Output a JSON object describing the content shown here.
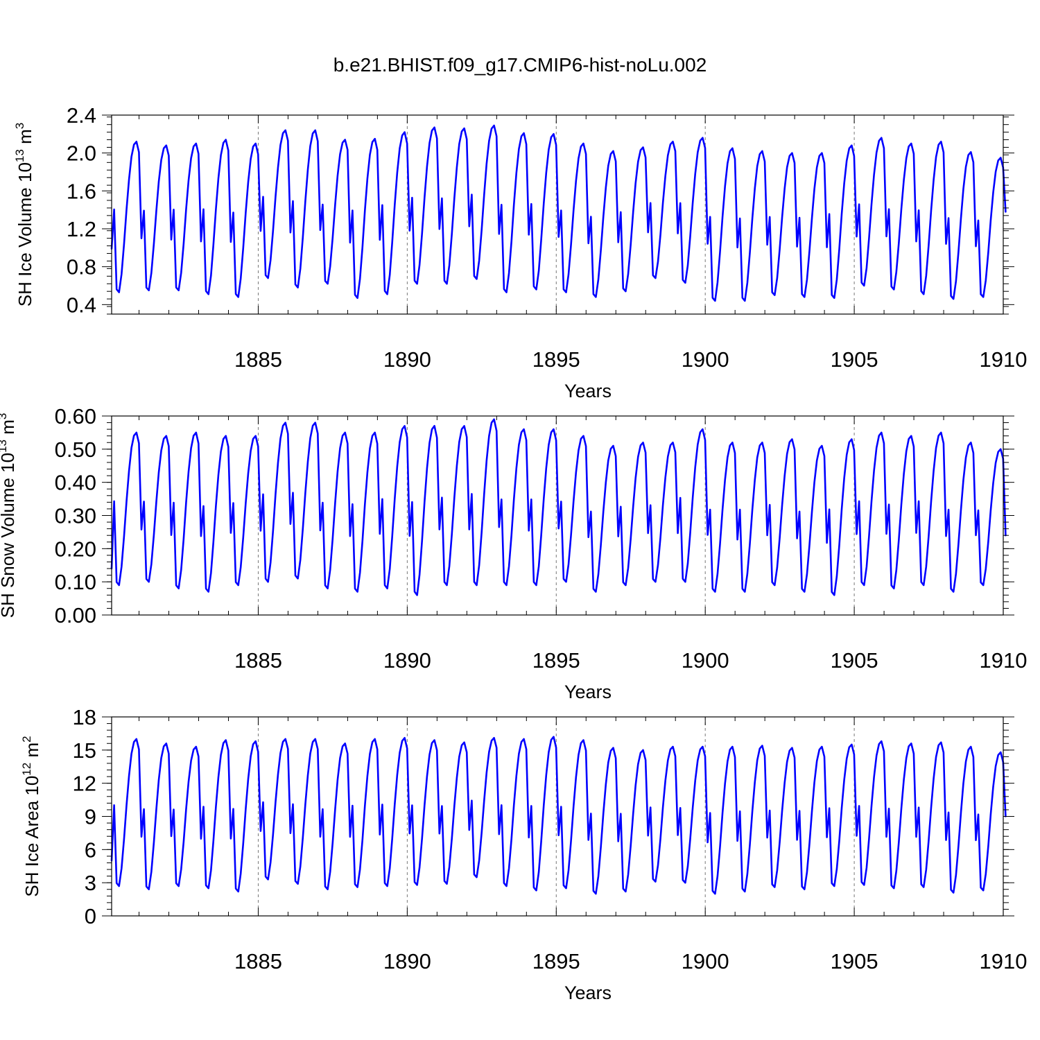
{
  "figure": {
    "title": "b.e21.BHIST.f09_g17.CMIP6-hist-noLu.002"
  },
  "colors": {
    "series": "#0000ff",
    "axis": "#000000",
    "grid": "#777777"
  },
  "chart_data": [
    {
      "type": "line",
      "ylabel": "SH Ice Volume 10",
      "ylabel_exp": "13",
      "ylabel_unit": " m",
      "ylabel_unit_exp": "3",
      "xlabel": "Years",
      "xlim": [
        1880.08,
        1910.0
      ],
      "ylim": [
        0.3,
        2.4
      ],
      "x_ticks": [
        1885,
        1890,
        1895,
        1900,
        1905,
        1910
      ],
      "x_tick_labels": [
        "1885",
        "1890",
        "1895",
        "1900",
        "1905",
        "1910"
      ],
      "y_ticks": [
        0.4,
        0.8,
        1.2,
        1.6,
        2.0,
        2.4
      ],
      "y_tick_labels": [
        "0.4",
        "0.8",
        "1.2",
        "1.6",
        "2.0",
        "2.4"
      ],
      "grid": "dashed vertical at 5-year ticks",
      "series": [
        {
          "start_year": 1880.08,
          "step": 0.0833,
          "annual_peaks": [
            2.12,
            2.08,
            2.1,
            2.14,
            2.1,
            2.24,
            2.24,
            2.14,
            2.15,
            2.22,
            2.27,
            2.26,
            2.29,
            2.21,
            2.2,
            2.1,
            2.02,
            2.06,
            2.12,
            2.16,
            2.05,
            2.02,
            2.0,
            2.0,
            2.08,
            2.16,
            2.1,
            2.12,
            2.01,
            1.95
          ],
          "annual_minima": [
            0.53,
            0.55,
            0.55,
            0.51,
            0.48,
            0.68,
            0.58,
            0.62,
            0.47,
            0.51,
            0.62,
            0.62,
            0.67,
            0.53,
            0.56,
            0.53,
            0.48,
            0.54,
            0.68,
            0.63,
            0.44,
            0.44,
            0.5,
            0.48,
            0.47,
            0.6,
            0.56,
            0.51,
            0.46,
            0.48
          ],
          "first_value": 0.99,
          "last_value": 1.38
        }
      ]
    },
    {
      "type": "line",
      "ylabel": "SH Snow Volume 10",
      "ylabel_exp": "13",
      "ylabel_unit": " m",
      "ylabel_unit_exp": "3",
      "xlabel": "Years",
      "xlim": [
        1880.08,
        1910.0
      ],
      "ylim": [
        0.0,
        0.6
      ],
      "x_ticks": [
        1885,
        1890,
        1895,
        1900,
        1905,
        1910
      ],
      "x_tick_labels": [
        "1885",
        "1890",
        "1895",
        "1900",
        "1905",
        "1910"
      ],
      "y_ticks": [
        0.0,
        0.1,
        0.2,
        0.3,
        0.4,
        0.5,
        0.6
      ],
      "y_tick_labels": [
        "0.00",
        "0.10",
        "0.20",
        "0.30",
        "0.40",
        "0.50",
        "0.60"
      ],
      "grid": "dashed vertical at 5-year ticks",
      "series": [
        {
          "start_year": 1880.08,
          "step": 0.0833,
          "annual_peaks": [
            0.55,
            0.54,
            0.55,
            0.54,
            0.54,
            0.58,
            0.58,
            0.55,
            0.55,
            0.57,
            0.57,
            0.57,
            0.59,
            0.56,
            0.56,
            0.54,
            0.51,
            0.52,
            0.52,
            0.56,
            0.52,
            0.52,
            0.53,
            0.51,
            0.53,
            0.55,
            0.54,
            0.55,
            0.52,
            0.5
          ],
          "annual_minima": [
            0.09,
            0.1,
            0.08,
            0.07,
            0.09,
            0.1,
            0.11,
            0.08,
            0.07,
            0.08,
            0.06,
            0.09,
            0.09,
            0.09,
            0.09,
            0.1,
            0.07,
            0.09,
            0.1,
            0.1,
            0.07,
            0.07,
            0.09,
            0.07,
            0.06,
            0.09,
            0.08,
            0.09,
            0.07,
            0.09
          ],
          "first_value": 0.14,
          "last_value": 0.24
        }
      ]
    },
    {
      "type": "line",
      "ylabel": "SH Ice Area 10",
      "ylabel_exp": "12",
      "ylabel_unit": " m",
      "ylabel_unit_exp": "2",
      "xlabel": "Years",
      "xlim": [
        1880.08,
        1910.0
      ],
      "ylim": [
        0,
        18
      ],
      "x_ticks": [
        1885,
        1890,
        1895,
        1900,
        1905,
        1910
      ],
      "x_tick_labels": [
        "1885",
        "1890",
        "1895",
        "1900",
        "1905",
        "1910"
      ],
      "y_ticks": [
        0,
        3,
        6,
        9,
        12,
        15,
        18
      ],
      "y_tick_labels": [
        "0",
        "3",
        "6",
        "9",
        "12",
        "15",
        "18"
      ],
      "grid": "dashed vertical at 5-year ticks",
      "series": [
        {
          "start_year": 1880.08,
          "step": 0.0833,
          "annual_peaks": [
            16.0,
            15.6,
            15.3,
            15.9,
            15.8,
            16.0,
            16.0,
            15.6,
            16.0,
            16.1,
            15.9,
            15.7,
            16.1,
            16.0,
            16.2,
            15.9,
            15.2,
            15.0,
            15.3,
            15.3,
            15.3,
            15.4,
            15.2,
            15.3,
            15.5,
            15.8,
            15.6,
            15.7,
            15.3,
            14.8
          ],
          "annual_minima": [
            2.7,
            2.4,
            2.7,
            2.5,
            2.2,
            3.3,
            2.9,
            2.4,
            2.6,
            2.7,
            2.8,
            2.9,
            3.5,
            2.7,
            2.3,
            2.5,
            2.0,
            2.2,
            3.1,
            3.0,
            2.0,
            2.2,
            2.6,
            2.4,
            2.7,
            2.8,
            2.5,
            2.6,
            2.1,
            2.3
          ],
          "first_value": 5.0,
          "last_value": 9.0
        }
      ]
    }
  ]
}
